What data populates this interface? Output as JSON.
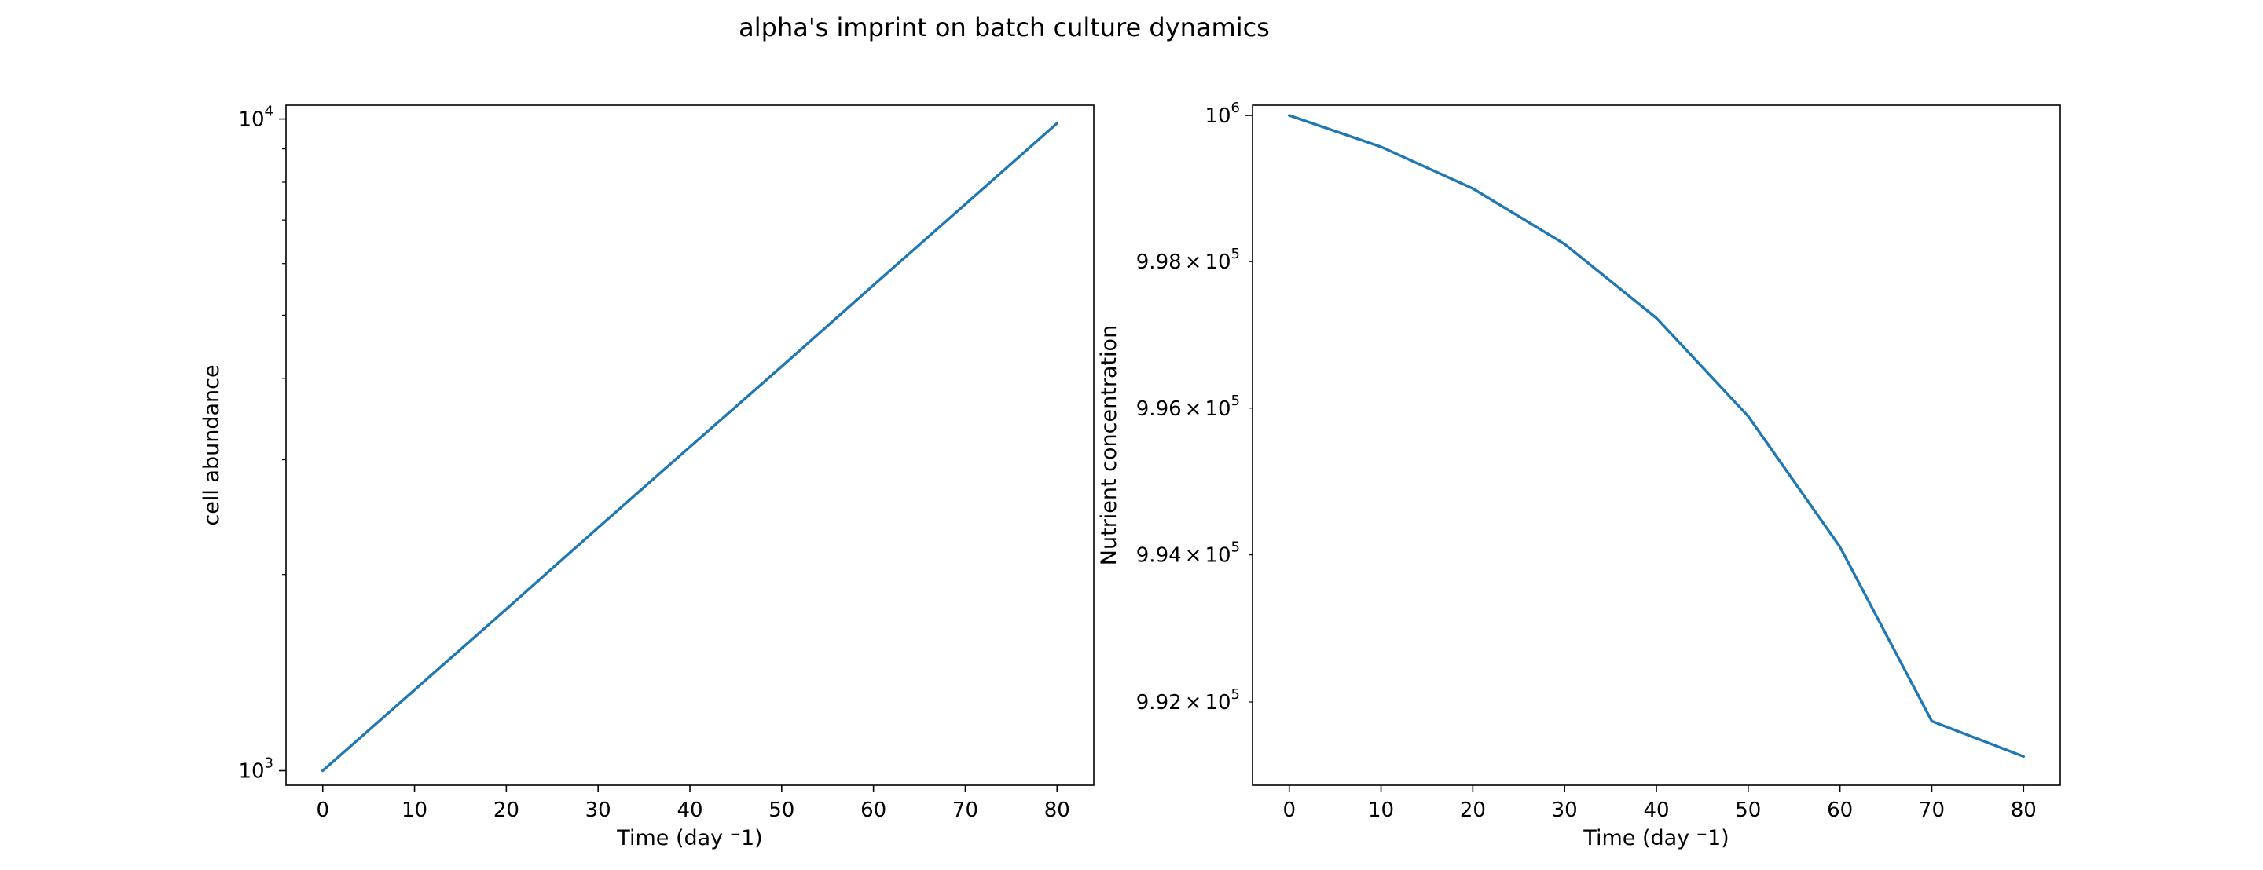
{
  "chart_data": {
    "title": "alpha's imprint on batch culture dynamics",
    "line_color": "#1f77b4",
    "panels": [
      {
        "type": "line",
        "xlabel": "Time (day ⁻1)",
        "ylabel": "cell abundance",
        "yscale": "log",
        "xlim": [
          -4,
          84
        ],
        "ylim": [
          950,
          10500
        ],
        "grid": false,
        "x_ticks": [
          0,
          10,
          20,
          30,
          40,
          50,
          60,
          70,
          80
        ],
        "y_major_ticks": [
          {
            "value": 1000,
            "base": "10",
            "exp": "3"
          },
          {
            "value": 10000,
            "base": "10",
            "exp": "4"
          }
        ],
        "y_minor_ticks": [
          2000,
          3000,
          4000,
          5000,
          6000,
          7000,
          8000,
          9000
        ],
        "series": [
          {
            "x": [
              0,
              10,
              20,
              30,
              40,
              50,
              60,
              70,
              80
            ],
            "y": [
              1000,
              1330,
              1770,
              2360,
              3140,
              4170,
              5560,
              7400,
              9850
            ]
          }
        ]
      },
      {
        "type": "line",
        "xlabel": "Time (day ⁻1)",
        "ylabel": "Nutrient concentration",
        "yscale": "log",
        "xlim": [
          -4,
          84
        ],
        "ylim": [
          990870,
          1000140
        ],
        "grid": false,
        "x_ticks": [
          0,
          10,
          20,
          30,
          40,
          50,
          60,
          70,
          80
        ],
        "y_major_ticks": [
          {
            "value": 1000000,
            "base": "10",
            "exp": "6"
          }
        ],
        "y_minor_ticks": [
          {
            "value": 992000,
            "mantissa": "9.92",
            "base": "10",
            "exp": "5"
          },
          {
            "value": 994000,
            "mantissa": "9.94",
            "base": "10",
            "exp": "5"
          },
          {
            "value": 996000,
            "mantissa": "9.96",
            "base": "10",
            "exp": "5"
          },
          {
            "value": 998000,
            "mantissa": "9.98",
            "base": "10",
            "exp": "5"
          }
        ],
        "series": [
          {
            "x": [
              0,
              10,
              20,
              30,
              40,
              50,
              60,
              70,
              80
            ],
            "y": [
              1000000,
              999570,
              999000,
              998240,
              997230,
              995890,
              994110,
              991740,
              991260
            ]
          }
        ]
      }
    ]
  }
}
